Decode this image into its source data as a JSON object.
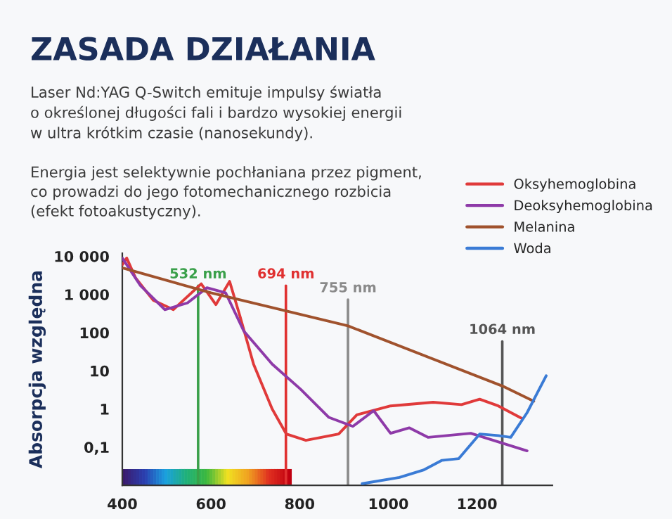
{
  "chart_data": {
    "type": "line",
    "title": "ZASADA DZIAŁANIA",
    "subtitle": "Laser Nd:YAG Q-Switch emituje impulsy światła\no określonej długości fali i bardzo wysokiej energii\nw ultra krótkim czasie (nanosekundy).",
    "annotations": [
      "Energia jest selektywnie pochłaniana przez pigment,\nco prowadzi do jego fotomechanicznego rozbicia\n(efekt fotoakustyczny)."
    ],
    "ylabel": "Absorpcja względna",
    "log": "y",
    "xlim": [
      400,
      1370
    ],
    "xticks": [
      400,
      600,
      800,
      1000,
      1200
    ],
    "ylim": [
      0.01,
      12000
    ],
    "yticks": [
      {
        "value": 10000,
        "label": "10 000"
      },
      {
        "value": 1000,
        "label": "1 000"
      },
      100,
      10,
      1,
      {
        "value": 0.1,
        "label": "0,1"
      }
    ],
    "grid": false,
    "legend": "top right",
    "series": [
      {
        "name": "Oksyhemoglobina",
        "color": "#e03a3a",
        "x": [
          400,
          410,
          430,
          470,
          515,
          578,
          611,
          642,
          665,
          696,
          738,
          770,
          814,
          888,
          929,
          1005,
          1101,
          1165,
          1206,
          1248,
          1302
        ],
        "values": [
          6000,
          9000,
          2700,
          700,
          400,
          1900,
          540,
          2200,
          280,
          15,
          1,
          0.22,
          0.15,
          0.22,
          0.7,
          1.2,
          1.5,
          1.3,
          1.8,
          1.2,
          0.56
        ]
      },
      {
        "name": "Deoksyhemoglobina",
        "color": "#8e3aa8",
        "x": [
          400,
          441,
          496,
          547,
          591,
          633,
          674,
          738,
          802,
          866,
          920,
          967,
          1005,
          1047,
          1090,
          1186,
          1313
        ],
        "values": [
          9000,
          1700,
          400,
          600,
          1500,
          1100,
          110,
          15,
          3.3,
          0.6,
          0.35,
          0.9,
          0.23,
          0.32,
          0.18,
          0.23,
          0.08
        ]
      },
      {
        "name": "Melanina",
        "color": "#a0522d",
        "x": [
          400,
          600,
          909,
          1257,
          1328
        ],
        "values": [
          5000,
          1100,
          150,
          4,
          1.6
        ]
      },
      {
        "name": "Woda",
        "color": "#3a7bd5",
        "x": [
          941,
          1025,
          1079,
          1121,
          1159,
          1206,
          1248,
          1276,
          1313,
          1356
        ],
        "values": [
          0.011,
          0.016,
          0.025,
          0.045,
          0.05,
          0.22,
          0.2,
          0.18,
          0.8,
          7.4
        ]
      }
    ],
    "ref_lines": [
      {
        "axis": "x",
        "value": 571,
        "label": "532 nm",
        "color": "#3aa04a"
      },
      {
        "axis": "x",
        "value": 769,
        "label": "694 nm",
        "color": "#e03030"
      },
      {
        "axis": "x",
        "value": 909,
        "label": "755 nm",
        "color": "#8a8a8a"
      },
      {
        "axis": "x",
        "value": 1257,
        "label": "1064 nm",
        "color": "#555555"
      }
    ]
  }
}
